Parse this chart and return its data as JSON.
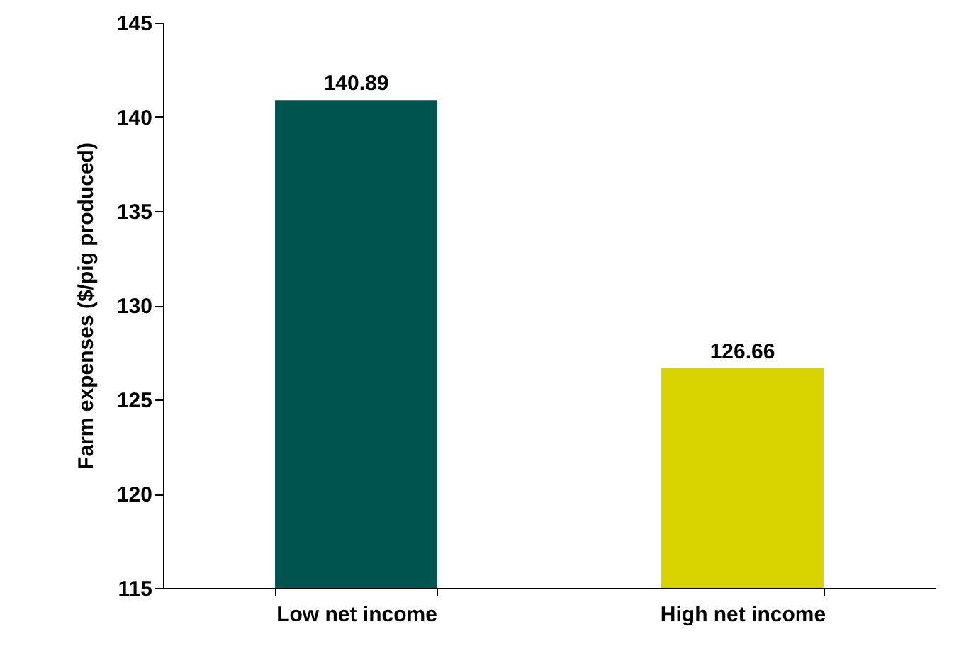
{
  "chart_data": {
    "type": "bar",
    "ylabel": "Farm expenses ($/pig produced)",
    "categories": [
      "Low net income",
      "High net income"
    ],
    "values": [
      140.89,
      126.66
    ],
    "colors": [
      "#00544f",
      "#d9d400"
    ],
    "ylim": [
      115,
      145
    ],
    "yticks": [
      115,
      120,
      125,
      130,
      135,
      140,
      145
    ],
    "data_labels": true,
    "grid": false
  }
}
